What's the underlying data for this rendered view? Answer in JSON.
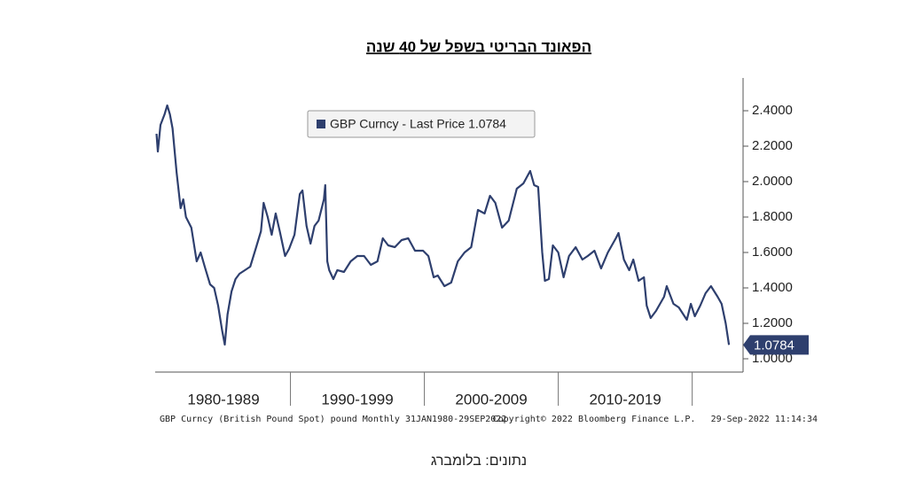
{
  "chart_data": {
    "type": "line",
    "title": "הפאונד הבריטי בשפל של 40 שנה",
    "source": "נתונים: בלומברג",
    "footer_left": "GBP Curncy (British Pound Spot) pound  Monthly 31JAN1980-29SEP2022",
    "footer_center": "Copyright© 2022 Bloomberg Finance L.P.",
    "footer_right": "29-Sep-2022 11:14:34",
    "x_groups": [
      {
        "label": "1980-1989",
        "start": 1980,
        "end": 1990
      },
      {
        "label": "1990-1999",
        "start": 1990,
        "end": 2000
      },
      {
        "label": "2000-2009",
        "start": 2000,
        "end": 2010
      },
      {
        "label": "2010-2019",
        "start": 2010,
        "end": 2020
      }
    ],
    "x": [
      1980.0,
      1980.1,
      1980.3,
      1980.6,
      1980.8,
      1981.0,
      1981.2,
      1981.5,
      1981.8,
      1982.0,
      1982.2,
      1982.6,
      1983.0,
      1983.3,
      1983.6,
      1984.0,
      1984.3,
      1984.6,
      1984.9,
      1985.1,
      1985.3,
      1985.6,
      1985.9,
      1986.2,
      1986.6,
      1987.0,
      1987.4,
      1987.8,
      1988.0,
      1988.3,
      1988.6,
      1988.9,
      1989.2,
      1989.6,
      1989.9,
      1990.3,
      1990.7,
      1990.9,
      1991.2,
      1991.5,
      1991.8,
      1992.1,
      1992.5,
      1992.6,
      1992.75,
      1992.9,
      1993.2,
      1993.5,
      1994.0,
      1994.5,
      1995.0,
      1995.5,
      1996.0,
      1996.5,
      1996.9,
      1997.3,
      1997.8,
      1998.3,
      1998.8,
      1999.3,
      1999.9,
      2000.3,
      2000.7,
      2001.0,
      2001.5,
      2002.0,
      2002.5,
      2003.0,
      2003.5,
      2004.0,
      2004.5,
      2004.9,
      2005.3,
      2005.8,
      2006.3,
      2006.9,
      2007.4,
      2007.9,
      2008.2,
      2008.5,
      2008.8,
      2009.0,
      2009.3,
      2009.6,
      2010.0,
      2010.4,
      2010.8,
      2011.3,
      2011.8,
      2012.2,
      2012.7,
      2013.2,
      2013.7,
      2014.3,
      2014.5,
      2014.9,
      2015.3,
      2015.6,
      2016.0,
      2016.4,
      2016.6,
      2016.9,
      2017.3,
      2017.9,
      2018.1,
      2018.6,
      2019.0,
      2019.6,
      2019.9,
      2020.2,
      2020.6,
      2021.0,
      2021.4,
      2021.9,
      2022.2,
      2022.5,
      2022.75
    ],
    "series": [
      {
        "name": "GBP Curncy - Last Price 1.0784",
        "color": "#2e3f6e",
        "values": [
          2.27,
          2.17,
          2.32,
          2.38,
          2.43,
          2.38,
          2.3,
          2.05,
          1.85,
          1.9,
          1.8,
          1.74,
          1.55,
          1.6,
          1.52,
          1.42,
          1.4,
          1.3,
          1.16,
          1.08,
          1.25,
          1.38,
          1.45,
          1.48,
          1.5,
          1.52,
          1.62,
          1.72,
          1.88,
          1.8,
          1.7,
          1.82,
          1.72,
          1.58,
          1.62,
          1.7,
          1.93,
          1.95,
          1.75,
          1.65,
          1.75,
          1.78,
          1.9,
          1.98,
          1.55,
          1.5,
          1.45,
          1.5,
          1.49,
          1.55,
          1.58,
          1.58,
          1.53,
          1.55,
          1.68,
          1.64,
          1.63,
          1.67,
          1.68,
          1.61,
          1.61,
          1.58,
          1.46,
          1.47,
          1.41,
          1.43,
          1.55,
          1.6,
          1.63,
          1.84,
          1.82,
          1.92,
          1.88,
          1.74,
          1.78,
          1.96,
          1.99,
          2.06,
          1.98,
          1.97,
          1.6,
          1.44,
          1.45,
          1.64,
          1.6,
          1.46,
          1.58,
          1.63,
          1.56,
          1.58,
          1.61,
          1.51,
          1.6,
          1.68,
          1.71,
          1.56,
          1.5,
          1.56,
          1.44,
          1.46,
          1.3,
          1.23,
          1.27,
          1.35,
          1.41,
          1.31,
          1.29,
          1.22,
          1.31,
          1.24,
          1.3,
          1.37,
          1.41,
          1.35,
          1.31,
          1.2,
          1.0784
        ],
        "last_label": "1.0784"
      }
    ],
    "xlim": [
      1979.9,
      2023.8
    ],
    "ylim": [
      0.925,
      2.585
    ],
    "yticks": [
      {
        "value": 1.0,
        "label": "1.0000"
      },
      {
        "value": 1.2,
        "label": "1.2000"
      },
      {
        "value": 1.4,
        "label": "1.4000"
      },
      {
        "value": 1.6,
        "label": "1.6000"
      },
      {
        "value": 1.8,
        "label": "1.8000"
      },
      {
        "value": 2.0,
        "label": "2.0000"
      },
      {
        "value": 2.2,
        "label": "2.2000"
      },
      {
        "value": 2.4,
        "label": "2.4000"
      }
    ],
    "y_axis_side": "right",
    "legend": "top-center"
  }
}
